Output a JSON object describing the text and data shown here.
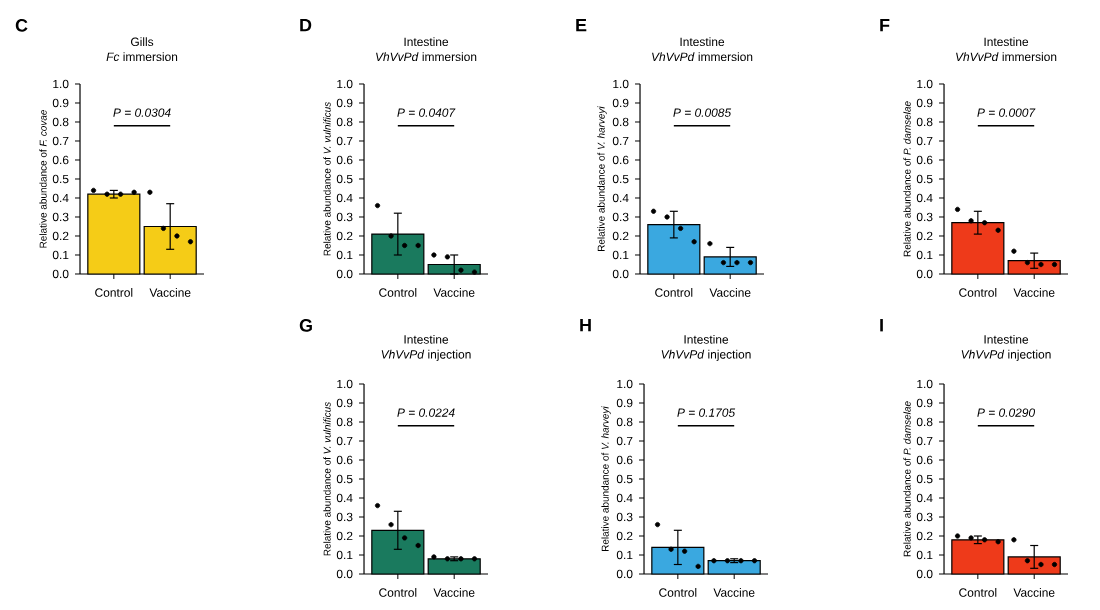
{
  "chart_data": [
    {
      "type": "bar",
      "title": "Gills",
      "subtitle": "*Fc* immersion",
      "ylabel": "Relative abundance of *F. covae*",
      "annotations": [
        "C",
        "P = 0.0304"
      ],
      "categories": [
        "Control",
        "Vaccine"
      ],
      "series": [
        {
          "type": "bar",
          "color": "#f5cc17",
          "values": [
            0.42,
            0.25
          ],
          "errors": [
            0.02,
            0.12
          ]
        },
        {
          "type": "scatter",
          "color": "#000000",
          "x": [
            "Control",
            "Control",
            "Control",
            "Control",
            "Vaccine",
            "Vaccine",
            "Vaccine",
            "Vaccine"
          ],
          "values": [
            0.44,
            0.42,
            0.42,
            0.43,
            0.43,
            0.24,
            0.2,
            0.17
          ]
        }
      ],
      "ylim": [
        0,
        1
      ],
      "yticks": [
        {
          "value": 0,
          "label": "0.0"
        },
        {
          "value": 0.1,
          "label": "0.1"
        },
        {
          "value": 0.2,
          "label": "0.2"
        },
        {
          "value": 0.3,
          "label": "0.3"
        },
        {
          "value": 0.4,
          "label": "0.4"
        },
        {
          "value": 0.5,
          "label": "0.5"
        },
        {
          "value": 0.6,
          "label": "0.6"
        },
        {
          "value": 0.7,
          "label": "0.7"
        },
        {
          "value": 0.8,
          "label": "0.8"
        },
        {
          "value": 0.9,
          "label": "0.9"
        },
        {
          "value": 1,
          "label": "1.0"
        }
      ]
    },
    {
      "type": "bar",
      "title": "Intestine",
      "subtitle": "*VhVvPd* immersion",
      "ylabel": "Relative abundance of *V. vulnificus*",
      "annotations": [
        "D",
        "P = 0.0407"
      ],
      "categories": [
        "Control",
        "Vaccine"
      ],
      "series": [
        {
          "type": "bar",
          "color": "#1a7a5e",
          "values": [
            0.21,
            0.05
          ],
          "errors": [
            0.11,
            0.05
          ]
        },
        {
          "type": "scatter",
          "color": "#000000",
          "x": [
            "Control",
            "Control",
            "Control",
            "Control",
            "Vaccine",
            "Vaccine",
            "Vaccine",
            "Vaccine"
          ],
          "values": [
            0.36,
            0.2,
            0.15,
            0.15,
            0.1,
            0.09,
            0.02,
            0.01
          ]
        }
      ],
      "ylim": [
        0,
        1
      ],
      "yticks": [
        {
          "value": 0,
          "label": "0.0"
        },
        {
          "value": 0.1,
          "label": "0.1"
        },
        {
          "value": 0.2,
          "label": "0.2"
        },
        {
          "value": 0.3,
          "label": "0.3"
        },
        {
          "value": 0.4,
          "label": "0.4"
        },
        {
          "value": 0.5,
          "label": "0.5"
        },
        {
          "value": 0.6,
          "label": "0.6"
        },
        {
          "value": 0.7,
          "label": "0.7"
        },
        {
          "value": 0.8,
          "label": "0.8"
        },
        {
          "value": 0.9,
          "label": "0.9"
        },
        {
          "value": 1,
          "label": "1.0"
        }
      ]
    },
    {
      "type": "bar",
      "title": "Intestine",
      "subtitle": "*VhVvPd* immersion",
      "ylabel": "Relative abundance of *V. harveyi*",
      "annotations": [
        "E",
        "P = 0.0085"
      ],
      "categories": [
        "Control",
        "Vaccine"
      ],
      "series": [
        {
          "type": "bar",
          "color": "#3aa8e0",
          "values": [
            0.26,
            0.09
          ],
          "errors": [
            0.07,
            0.05
          ]
        },
        {
          "type": "scatter",
          "color": "#000000",
          "x": [
            "Control",
            "Control",
            "Control",
            "Control",
            "Vaccine",
            "Vaccine",
            "Vaccine",
            "Vaccine"
          ],
          "values": [
            0.33,
            0.3,
            0.24,
            0.17,
            0.16,
            0.06,
            0.06,
            0.06
          ]
        }
      ],
      "ylim": [
        0,
        1
      ],
      "yticks": [
        {
          "value": 0,
          "label": "0.0"
        },
        {
          "value": 0.1,
          "label": "0.1"
        },
        {
          "value": 0.2,
          "label": "0.2"
        },
        {
          "value": 0.3,
          "label": "0.3"
        },
        {
          "value": 0.4,
          "label": "0.4"
        },
        {
          "value": 0.5,
          "label": "0.5"
        },
        {
          "value": 0.6,
          "label": "0.6"
        },
        {
          "value": 0.7,
          "label": "0.7"
        },
        {
          "value": 0.8,
          "label": "0.8"
        },
        {
          "value": 0.9,
          "label": "0.9"
        },
        {
          "value": 1,
          "label": "1.0"
        }
      ]
    },
    {
      "type": "bar",
      "title": "Intestine",
      "subtitle": "*VhVvPd* immersion",
      "ylabel": "Relative abundance of *P. damselae*",
      "annotations": [
        "F",
        "P = 0.0007"
      ],
      "categories": [
        "Control",
        "Vaccine"
      ],
      "series": [
        {
          "type": "bar",
          "color": "#ee3a1a",
          "values": [
            0.27,
            0.07
          ],
          "errors": [
            0.06,
            0.04
          ]
        },
        {
          "type": "scatter",
          "color": "#000000",
          "x": [
            "Control",
            "Control",
            "Control",
            "Control",
            "Vaccine",
            "Vaccine",
            "Vaccine",
            "Vaccine"
          ],
          "values": [
            0.34,
            0.28,
            0.27,
            0.23,
            0.12,
            0.06,
            0.05,
            0.05
          ]
        }
      ],
      "ylim": [
        0,
        1
      ],
      "yticks": [
        {
          "value": 0,
          "label": "0.0"
        },
        {
          "value": 0.1,
          "label": "0.1"
        },
        {
          "value": 0.2,
          "label": "0.2"
        },
        {
          "value": 0.3,
          "label": "0.3"
        },
        {
          "value": 0.4,
          "label": "0.4"
        },
        {
          "value": 0.5,
          "label": "0.5"
        },
        {
          "value": 0.6,
          "label": "0.6"
        },
        {
          "value": 0.7,
          "label": "0.7"
        },
        {
          "value": 0.8,
          "label": "0.8"
        },
        {
          "value": 0.9,
          "label": "0.9"
        },
        {
          "value": 1,
          "label": "1.0"
        }
      ]
    },
    {
      "type": "bar",
      "title": "Intestine",
      "subtitle": "*VhVvPd* injection",
      "ylabel": "Relative abundance of *V. vulnificus*",
      "annotations": [
        "G",
        "P = 0.0224"
      ],
      "categories": [
        "Control",
        "Vaccine"
      ],
      "series": [
        {
          "type": "bar",
          "color": "#1a7a5e",
          "values": [
            0.23,
            0.08
          ],
          "errors": [
            0.1,
            0.01
          ]
        },
        {
          "type": "scatter",
          "color": "#000000",
          "x": [
            "Control",
            "Control",
            "Control",
            "Control",
            "Vaccine",
            "Vaccine",
            "Vaccine",
            "Vaccine"
          ],
          "values": [
            0.36,
            0.26,
            0.19,
            0.15,
            0.09,
            0.08,
            0.08,
            0.08
          ]
        }
      ],
      "ylim": [
        0,
        1
      ],
      "yticks": [
        {
          "value": 0,
          "label": "0.0"
        },
        {
          "value": 0.1,
          "label": "0.1"
        },
        {
          "value": 0.2,
          "label": "0.2"
        },
        {
          "value": 0.3,
          "label": "0.3"
        },
        {
          "value": 0.4,
          "label": "0.4"
        },
        {
          "value": 0.5,
          "label": "0.5"
        },
        {
          "value": 0.6,
          "label": "0.6"
        },
        {
          "value": 0.7,
          "label": "0.7"
        },
        {
          "value": 0.8,
          "label": "0.8"
        },
        {
          "value": 0.9,
          "label": "0.9"
        },
        {
          "value": 1,
          "label": "1.0"
        }
      ]
    },
    {
      "type": "bar",
      "title": "Intestine",
      "subtitle": "*VhVvPd* injection",
      "ylabel": "Relative abundance of *V. harveyi*",
      "annotations": [
        "H",
        "P = 0.1705"
      ],
      "categories": [
        "Control",
        "Vaccine"
      ],
      "series": [
        {
          "type": "bar",
          "color": "#3aa8e0",
          "values": [
            0.14,
            0.07
          ],
          "errors": [
            0.09,
            0.01
          ]
        },
        {
          "type": "scatter",
          "color": "#000000",
          "x": [
            "Control",
            "Control",
            "Control",
            "Control",
            "Vaccine",
            "Vaccine",
            "Vaccine",
            "Vaccine"
          ],
          "values": [
            0.26,
            0.13,
            0.12,
            0.04,
            0.07,
            0.07,
            0.07,
            0.07
          ]
        }
      ],
      "ylim": [
        0,
        1
      ],
      "yticks": [
        {
          "value": 0,
          "label": "0.0"
        },
        {
          "value": 0.1,
          "label": "0.1"
        },
        {
          "value": 0.2,
          "label": "0.2"
        },
        {
          "value": 0.3,
          "label": "0.3"
        },
        {
          "value": 0.4,
          "label": "0.4"
        },
        {
          "value": 0.5,
          "label": "0.5"
        },
        {
          "value": 0.6,
          "label": "0.6"
        },
        {
          "value": 0.7,
          "label": "0.7"
        },
        {
          "value": 0.8,
          "label": "0.8"
        },
        {
          "value": 0.9,
          "label": "0.9"
        },
        {
          "value": 1,
          "label": "1.0"
        }
      ]
    },
    {
      "type": "bar",
      "title": "Intestine",
      "subtitle": "*VhVvPd* injection",
      "ylabel": "Relative abundance of *P. damselae*",
      "annotations": [
        "I",
        "P = 0.0290"
      ],
      "categories": [
        "Control",
        "Vaccine"
      ],
      "series": [
        {
          "type": "bar",
          "color": "#ee3a1a",
          "values": [
            0.18,
            0.09
          ],
          "errors": [
            0.02,
            0.06
          ]
        },
        {
          "type": "scatter",
          "color": "#000000",
          "x": [
            "Control",
            "Control",
            "Control",
            "Control",
            "Vaccine",
            "Vaccine",
            "Vaccine",
            "Vaccine"
          ],
          "values": [
            0.2,
            0.19,
            0.18,
            0.17,
            0.18,
            0.07,
            0.05,
            0.05
          ]
        }
      ],
      "ylim": [
        0,
        1
      ],
      "yticks": [
        {
          "value": 0,
          "label": "0.0"
        },
        {
          "value": 0.1,
          "label": "0.1"
        },
        {
          "value": 0.2,
          "label": "0.2"
        },
        {
          "value": 0.3,
          "label": "0.3"
        },
        {
          "value": 0.4,
          "label": "0.4"
        },
        {
          "value": 0.5,
          "label": "0.5"
        },
        {
          "value": 0.6,
          "label": "0.6"
        },
        {
          "value": 0.7,
          "label": "0.7"
        },
        {
          "value": 0.8,
          "label": "0.8"
        },
        {
          "value": 0.9,
          "label": "0.9"
        },
        {
          "value": 1,
          "label": "1.0"
        }
      ]
    }
  ]
}
